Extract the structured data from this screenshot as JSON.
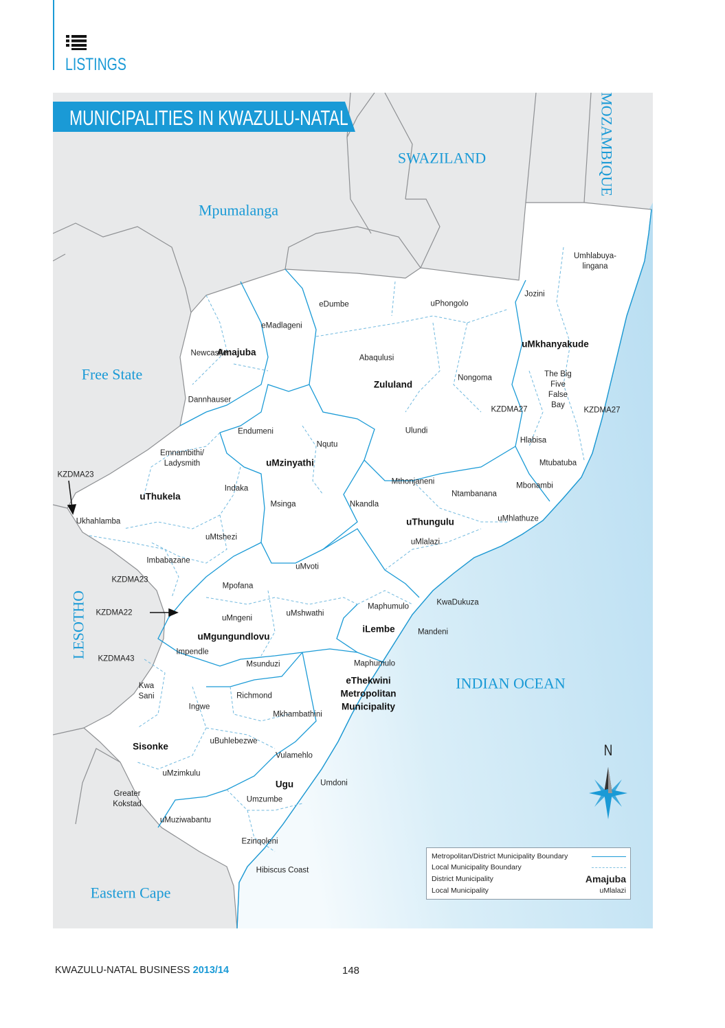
{
  "header": {
    "section": "LISTINGS",
    "icon": "list-icon",
    "accent_color": "#1a9ad6"
  },
  "map": {
    "title": "MUNICIPALITIES IN KWAZULU-NATAL",
    "regions": [
      "Mpumalanga",
      "SWAZILAND",
      "MOZAMBIQUE",
      "Free State",
      "LESOTHO",
      "INDIAN OCEAN",
      "Eastern Cape"
    ],
    "districts": [
      "Amajuba",
      "Zululand",
      "uMkhanyakude",
      "uMzinyathi",
      "uThukela",
      "uThungulu",
      "uMgungundlovu",
      "iLembe",
      "eThekwini\nMetropolitan\nMunicipality",
      "Sisonke",
      "Ugu"
    ],
    "locals": [
      "eDumbe",
      "uPhongolo",
      "Jozini",
      "Umhlabuya-\nlingana",
      "eMadlageni",
      "Newcastle",
      "Abaqulusi",
      "Nongoma",
      "The Big\nFive\nFalse\nBay",
      "KZDMA27",
      "KZDMA27",
      "Dannhauser",
      "Endumeni",
      "Nqutu",
      "Ulundi",
      "Hlabisa",
      "Emnambithi/\nLadysmith",
      "Mtubatuba",
      "Indaka",
      "Mthonjaneni",
      "Ntambanana",
      "Mbonambi",
      "Msinga",
      "Nkandla",
      "Ukhahlamba",
      "uMhlathuze",
      "uMtshezi",
      "uMlalazi",
      "Imbabazane",
      "uMvoti",
      "KZDMA23",
      "Mpofana",
      "KwaDukuza",
      "Maphumulo",
      "KZDMA22",
      "uMshwathi",
      "uMngeni",
      "Mandeni",
      "Impendle",
      "KZDMA43",
      "Msunduzi",
      "Maphumulo",
      "Kwa\nSani",
      "Richmond",
      "Ingwe",
      "Mkhambathini",
      "uBuhlebezwe",
      "Vulamehlo",
      "uMzimkulu",
      "Umdoni",
      "Greater\nKokstad",
      "Umzumbe",
      "uMuziwabantu",
      "Ezinqoleni",
      "Hibiscus Coast",
      "KZDMA23"
    ],
    "north_label": "N",
    "colors": {
      "boundary": "#1a9ad6",
      "ocean": "#cfe8f5",
      "neighbour": "#e8e9ea",
      "province": "#ffffff"
    }
  },
  "legend": {
    "items": [
      {
        "label": "Metropolitan/District Municipality Boundary",
        "symbol": "solid-line"
      },
      {
        "label": "Local Municipality Boundary",
        "symbol": "dashed-line"
      },
      {
        "label": "District Municipality",
        "sample": "Amajuba"
      },
      {
        "label": "Local Municipality",
        "sample": "uMlalazi"
      }
    ]
  },
  "footer": {
    "publication": "KWAZULU-NATAL BUSINESS",
    "year": "2013/14",
    "page": "148"
  }
}
